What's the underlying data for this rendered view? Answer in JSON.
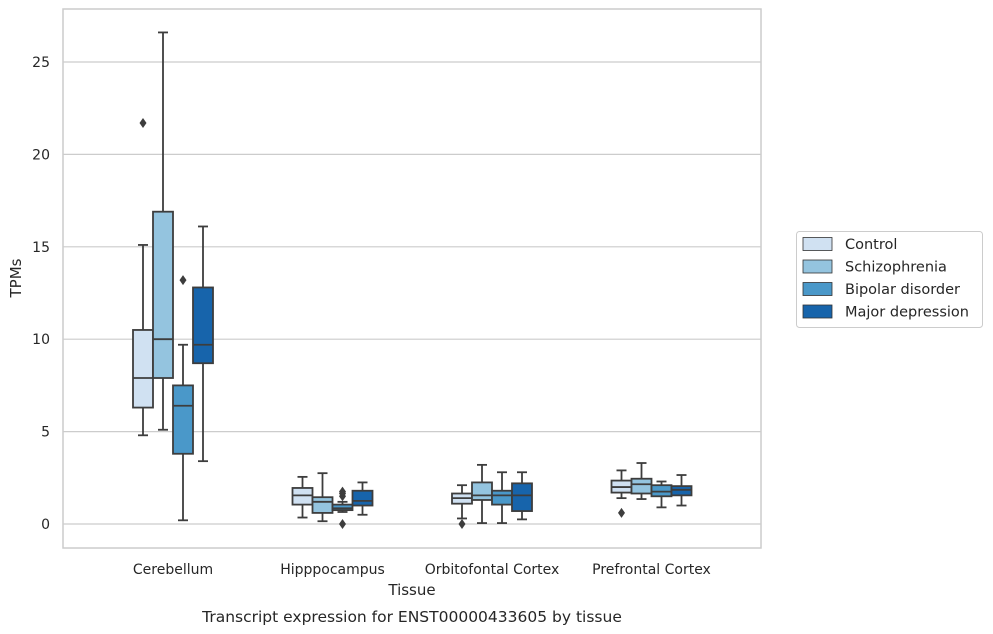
{
  "chart_data": {
    "type": "box",
    "title": "Transcript expression for ENST00000433605 by tissue",
    "xlabel": "Tissue",
    "ylabel": "TPMs",
    "ylim": [
      -1.3,
      27.7
    ],
    "yticks": [
      0,
      5,
      10,
      15,
      20,
      25
    ],
    "grid": "horizontal",
    "legend_position": "right",
    "categories": [
      "Cerebellum",
      "Hipppocampus",
      "Orbitofontal Cortex",
      "Prefrontal Cortex"
    ],
    "series": [
      {
        "name": "Control",
        "color": "#d0e1f2",
        "boxes": [
          {
            "whisker_low": 4.8,
            "q1": 6.3,
            "median": 7.9,
            "q3": 10.5,
            "whisker_high": 15.1,
            "outliers": [
              21.7
            ]
          },
          {
            "whisker_low": 0.35,
            "q1": 1.05,
            "median": 1.55,
            "q3": 1.95,
            "whisker_high": 2.55,
            "outliers": []
          },
          {
            "whisker_low": 0.3,
            "q1": 1.1,
            "median": 1.4,
            "q3": 1.65,
            "whisker_high": 2.1,
            "outliers": [
              0.0
            ]
          },
          {
            "whisker_low": 1.4,
            "q1": 1.7,
            "median": 2.0,
            "q3": 2.35,
            "whisker_high": 2.9,
            "outliers": [
              0.6
            ]
          }
        ]
      },
      {
        "name": "Schizophrenia",
        "color": "#94c4df",
        "boxes": [
          {
            "whisker_low": 5.1,
            "q1": 7.9,
            "median": 10.0,
            "q3": 16.9,
            "whisker_high": 26.6,
            "outliers": []
          },
          {
            "whisker_low": 0.15,
            "q1": 0.6,
            "median": 1.2,
            "q3": 1.45,
            "whisker_high": 2.75,
            "outliers": []
          },
          {
            "whisker_low": 0.05,
            "q1": 1.3,
            "median": 1.55,
            "q3": 2.25,
            "whisker_high": 3.2,
            "outliers": []
          },
          {
            "whisker_low": 1.35,
            "q1": 1.65,
            "median": 2.15,
            "q3": 2.45,
            "whisker_high": 3.3,
            "outliers": []
          }
        ]
      },
      {
        "name": "Bipolar disorder",
        "color": "#4a98c9",
        "boxes": [
          {
            "whisker_low": 0.2,
            "q1": 3.8,
            "median": 6.4,
            "q3": 7.5,
            "whisker_high": 9.7,
            "outliers": [
              13.2
            ]
          },
          {
            "whisker_low": 0.65,
            "q1": 0.75,
            "median": 0.85,
            "q3": 1.05,
            "whisker_high": 1.2,
            "outliers": [
              1.5,
              1.65,
              1.75,
              0.0
            ]
          },
          {
            "whisker_low": 0.05,
            "q1": 1.05,
            "median": 1.55,
            "q3": 1.8,
            "whisker_high": 2.8,
            "outliers": []
          },
          {
            "whisker_low": 0.9,
            "q1": 1.5,
            "median": 1.75,
            "q3": 2.1,
            "whisker_high": 2.3,
            "outliers": []
          }
        ]
      },
      {
        "name": "Major depression",
        "color": "#1764ab",
        "boxes": [
          {
            "whisker_low": 3.4,
            "q1": 8.7,
            "median": 9.7,
            "q3": 12.8,
            "whisker_high": 16.1,
            "outliers": []
          },
          {
            "whisker_low": 0.5,
            "q1": 1.0,
            "median": 1.25,
            "q3": 1.8,
            "whisker_high": 2.25,
            "outliers": []
          },
          {
            "whisker_low": 0.25,
            "q1": 0.7,
            "median": 1.55,
            "q3": 2.2,
            "whisker_high": 2.8,
            "outliers": []
          },
          {
            "whisker_low": 1.0,
            "q1": 1.55,
            "median": 1.85,
            "q3": 2.05,
            "whisker_high": 2.65,
            "outliers": []
          }
        ]
      }
    ]
  }
}
